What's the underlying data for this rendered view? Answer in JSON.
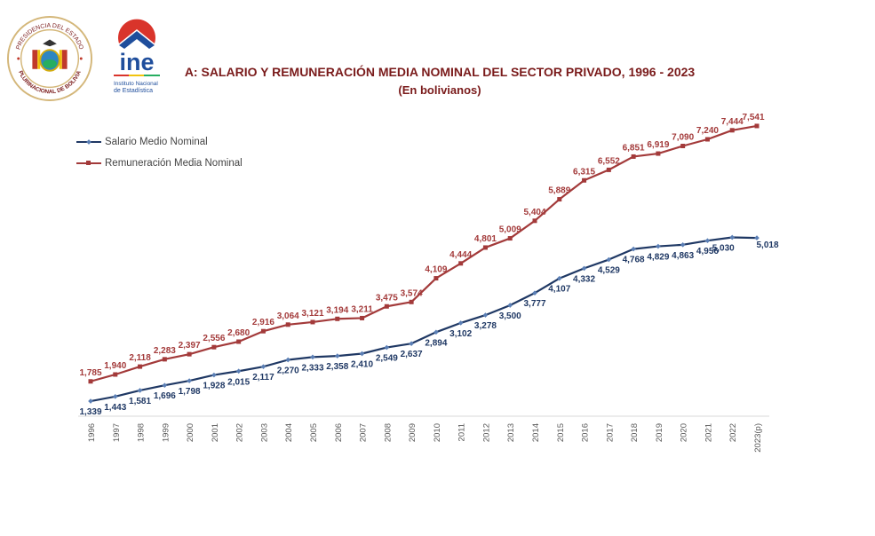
{
  "header": {
    "seal_text_top": "PRESIDENCIA DEL ESTADO",
    "seal_text_bottom": "PLURINACIONAL DE BOLIVIA",
    "logo_text": "ine",
    "logo_sub1": "Instituto Nacional",
    "logo_sub2": "de Estadística"
  },
  "colors": {
    "salario": "#1f3864",
    "remuneracion": "#a33a3a",
    "salario_marker": "#5b7fb5",
    "title": "#7a1b1b"
  },
  "chart_data": {
    "type": "line",
    "title": "A: SALARIO Y REMUNERACIÓN MEDIA NOMINAL DEL SECTOR PRIVADO, 1996 - 2023",
    "subtitle": "(En bolivianos)",
    "xlabel": "",
    "ylabel": "",
    "ylim": [
      1000,
      8000
    ],
    "grid": false,
    "legend_position": "top-left",
    "categories": [
      "1996",
      "1997",
      "1998",
      "1999",
      "2000",
      "2001",
      "2002",
      "2003",
      "2004",
      "2005",
      "2006",
      "2007",
      "2008",
      "2009",
      "2010",
      "2011",
      "2012",
      "2013",
      "2014",
      "2015",
      "2016",
      "2017",
      "2018",
      "2019",
      "2020",
      "2021",
      "2022",
      "2023(p)"
    ],
    "series": [
      {
        "name": "Salario Medio Nominal",
        "values": [
          1339,
          1443,
          1581,
          1696,
          1798,
          1928,
          2015,
          2117,
          2270,
          2333,
          2358,
          2410,
          2549,
          2637,
          2894,
          3102,
          3278,
          3500,
          3777,
          4107,
          4332,
          4529,
          4768,
          4829,
          4863,
          4956,
          5030,
          5018
        ],
        "labels": [
          "1,339",
          "1,443",
          "1,581",
          "1,696",
          "1,798",
          "1,928",
          "2,015",
          "2,117",
          "2,270",
          "2,333",
          "2,358",
          "2,410",
          "2,549",
          "2,637",
          "2,894",
          "3,102",
          "3,278",
          "3,500",
          "3,777",
          "4,107",
          "4,332",
          "4,529",
          "4,768",
          "4,829",
          "4,863",
          "4,956",
          "5,030",
          "5,018"
        ]
      },
      {
        "name": "Remuneración Media Nominal",
        "values": [
          1785,
          1940,
          2118,
          2283,
          2397,
          2556,
          2680,
          2916,
          3064,
          3121,
          3194,
          3211,
          3475,
          3574,
          4109,
          4444,
          4801,
          5009,
          5404,
          5889,
          6315,
          6552,
          6851,
          6919,
          7090,
          7240,
          7444,
          7541
        ],
        "labels": [
          "1,785",
          "1,940",
          "2,118",
          "2,283",
          "2,397",
          "2,556",
          "2,680",
          "2,916",
          "3,064",
          "3,121",
          "3,194",
          "3,211",
          "3,475",
          "3,574",
          "4,109",
          "4,444",
          "4,801",
          "5,009",
          "5,404",
          "5,889",
          "6,315",
          "6,552",
          "6,851",
          "6,919",
          "7,090",
          "7,240",
          "7,444",
          "7,541"
        ]
      }
    ]
  }
}
